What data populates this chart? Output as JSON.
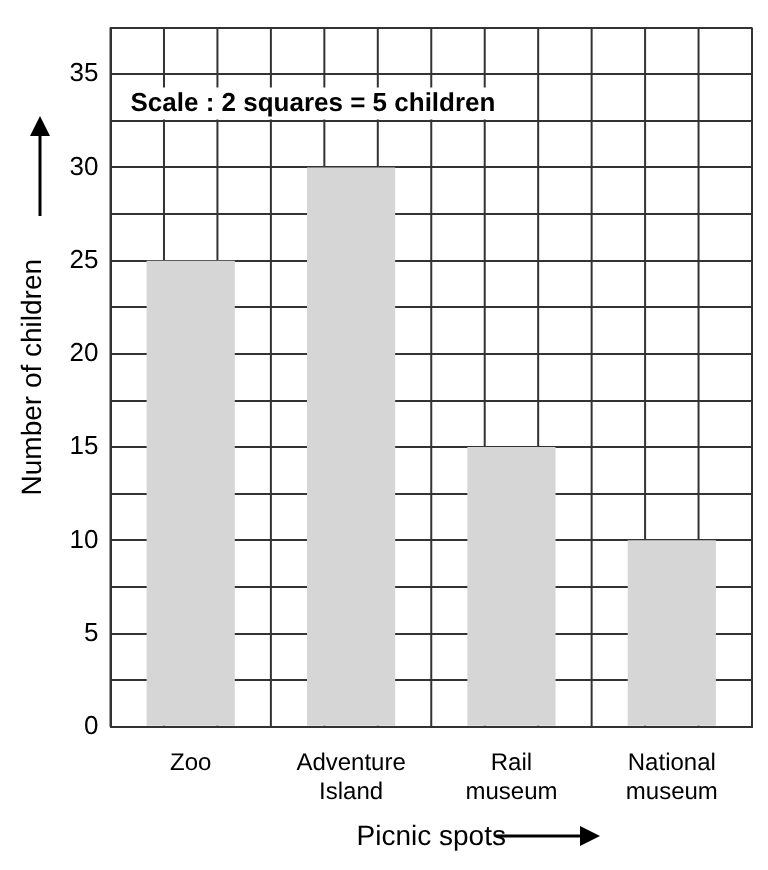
{
  "chart_data": {
    "type": "bar",
    "xlabel": "Picnic spots",
    "ylabel": "Number of children",
    "categories": [
      "Zoo",
      "Adventure Island",
      "Rail museum",
      "National museum"
    ],
    "values": [
      25,
      30,
      15,
      10
    ],
    "color": "#d6d6d6",
    "ylim": [
      0,
      37.5
    ],
    "yticks": [
      0,
      {
        "value": 2.5,
        "label": null
      },
      5,
      {
        "value": 7.5,
        "label": null
      },
      10,
      {
        "value": 12.5,
        "label": null
      },
      15,
      {
        "value": 17.5,
        "label": null
      },
      20,
      {
        "value": 22.5,
        "label": null
      },
      25,
      {
        "value": 27.5,
        "label": null
      },
      30,
      {
        "value": 32.5,
        "label": null
      },
      35,
      {
        "value": 37.5,
        "label": null
      }
    ],
    "grid": true,
    "annotations": [
      "Scale : 2 squares = 5 children"
    ]
  }
}
